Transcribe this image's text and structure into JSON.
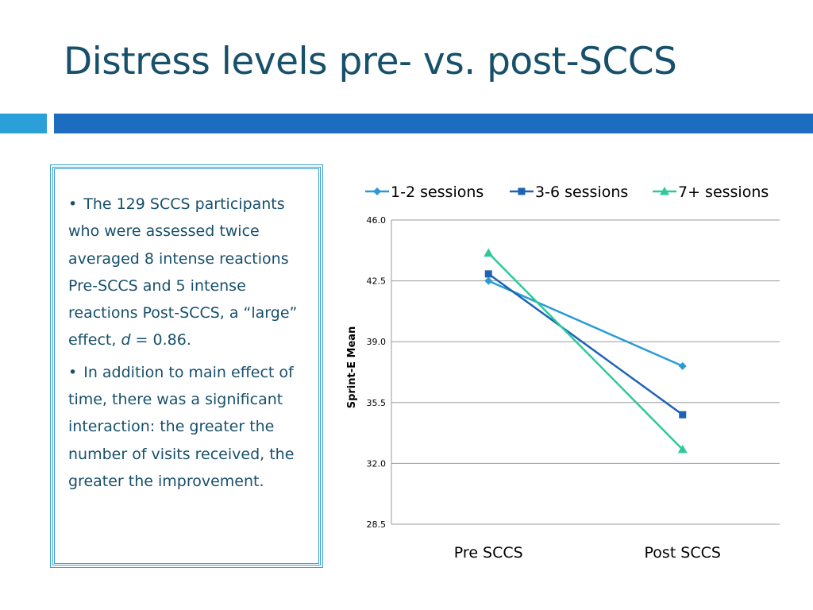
{
  "slide": {
    "title": "Distress levels pre- vs. post-SCCS"
  },
  "bullets": [
    {
      "mark": "•",
      "prefix": "The 129 SCCS participants who were assessed twice averaged 8 intense reactions Pre-SCCS and 5 intense reactions Post-SCCS,  a “large” effect, ",
      "italic": "d",
      "suffix": " = 0.86."
    },
    {
      "mark": "•",
      "prefix": "In addition to main effect of time, there was a significant interaction: the greater the number of visits received, the greater the improvement.",
      "italic": "",
      "suffix": ""
    }
  ],
  "colors": {
    "title": "#17506b",
    "accent_light": "#2b9fd8",
    "accent_dark": "#1c6cc0",
    "border": "#3aa0d6"
  },
  "chart_data": {
    "type": "line",
    "title": "",
    "xlabel": "",
    "ylabel": "Sprint-E Mean",
    "categories": [
      "Pre SCCS",
      "Post SCCS"
    ],
    "ylim": [
      28.5,
      46.0
    ],
    "yticks": [
      "28.5",
      "32.0",
      "35.5",
      "39.0",
      "42.5",
      "46.0"
    ],
    "grid": true,
    "legend": "top",
    "series": [
      {
        "name": "1-2 sessions",
        "values": [
          42.5,
          37.6
        ],
        "color": "#2a9bd6",
        "marker": "diamond"
      },
      {
        "name": "3-6 sessions",
        "values": [
          42.9,
          34.8
        ],
        "color": "#1c63b7",
        "marker": "square"
      },
      {
        "name": "7+ sessions",
        "values": [
          44.1,
          32.8
        ],
        "color": "#2ec99a",
        "marker": "triangle"
      }
    ]
  }
}
